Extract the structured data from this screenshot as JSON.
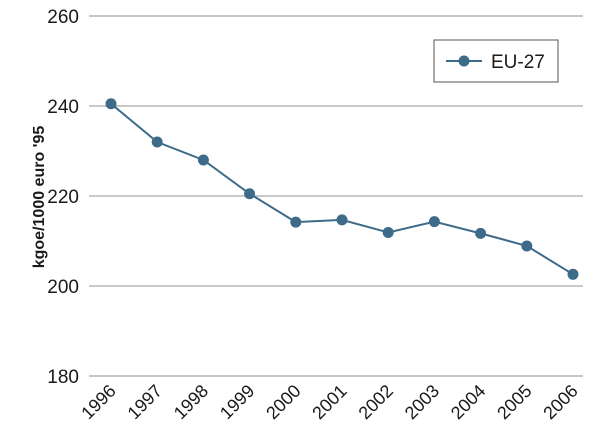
{
  "chart_data": {
    "type": "line",
    "x": [
      "1996",
      "1997",
      "1998",
      "1999",
      "2000",
      "2001",
      "2002",
      "2003",
      "2004",
      "2005",
      "2006"
    ],
    "series": [
      {
        "name": "EU-27",
        "values": [
          240.5,
          232.0,
          228.0,
          220.5,
          214.2,
          214.7,
          211.9,
          214.3,
          211.7,
          208.9,
          202.6
        ]
      }
    ],
    "ylabel": "kgoe/1000 euro '95",
    "ylim": [
      180,
      260
    ],
    "yticks": [
      180,
      200,
      220,
      240,
      260
    ],
    "grid": true,
    "legend_position": "top-right",
    "colors": {
      "series": "#3d6b89",
      "grid": "#c8c8c8"
    }
  }
}
